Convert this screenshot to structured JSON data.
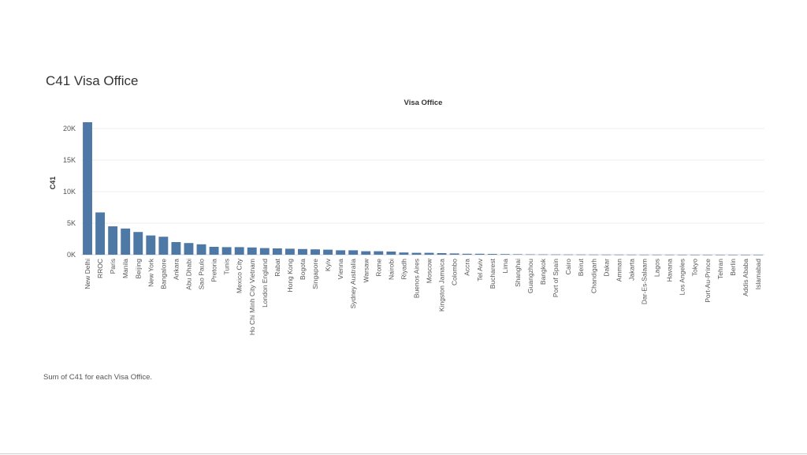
{
  "page": {
    "title": "C41 Visa Office",
    "caption": "Sum of C41 for each Visa Office."
  },
  "chart_data": {
    "type": "bar",
    "title": "Visa Office",
    "xlabel": "",
    "ylabel": "C41",
    "ylim": [
      0,
      21000
    ],
    "yticks": [
      0,
      5000,
      10000,
      15000,
      20000
    ],
    "ytick_labels": [
      "0K",
      "5K",
      "10K",
      "15K",
      "20K"
    ],
    "grid": true,
    "bar_color": "#4e79a7",
    "categories": [
      "New Delhi",
      "RROC",
      "Paris",
      "Manila",
      "Beijing",
      "New York",
      "Bangalore",
      "Ankara",
      "Abu Dhabi",
      "Sao Paulo",
      "Pretoria",
      "Tunis",
      "Mexico City",
      "Ho Chi Minh City Vietnam",
      "London England",
      "Rabat",
      "Hong Kong",
      "Bogota",
      "Singapore",
      "Kyiv",
      "Vienna",
      "Sydney Australia",
      "Warsaw",
      "Rome",
      "Nairobi",
      "Riyadh",
      "Buenos Aires",
      "Moscow",
      "Kingston Jamaica",
      "Colombo",
      "Accra",
      "Tel Aviv",
      "Bucharest",
      "Lima",
      "Shanghai",
      "Guangzhou",
      "Bangkok",
      "Port of Spain",
      "Cairo",
      "Beirut",
      "Chandigarh",
      "Dakar",
      "Amman",
      "Jakarta",
      "Dar-Es-Salaam",
      "Lagos",
      "Havana",
      "Los Angeles",
      "Tokyo",
      "Port-Au-Prince",
      "Tehran",
      "Berlin",
      "Addis Ababa",
      "Islamabad"
    ],
    "values": [
      21000,
      6700,
      4500,
      4150,
      3600,
      3050,
      2850,
      2000,
      1850,
      1650,
      1250,
      1200,
      1200,
      1150,
      1050,
      1000,
      950,
      900,
      850,
      800,
      700,
      700,
      550,
      550,
      500,
      350,
      300,
      300,
      250,
      200,
      150,
      150,
      120,
      100,
      80,
      60,
      50,
      40,
      35,
      30,
      25,
      20,
      18,
      15,
      12,
      10,
      8,
      6,
      5,
      4,
      3,
      2,
      2,
      1
    ]
  }
}
